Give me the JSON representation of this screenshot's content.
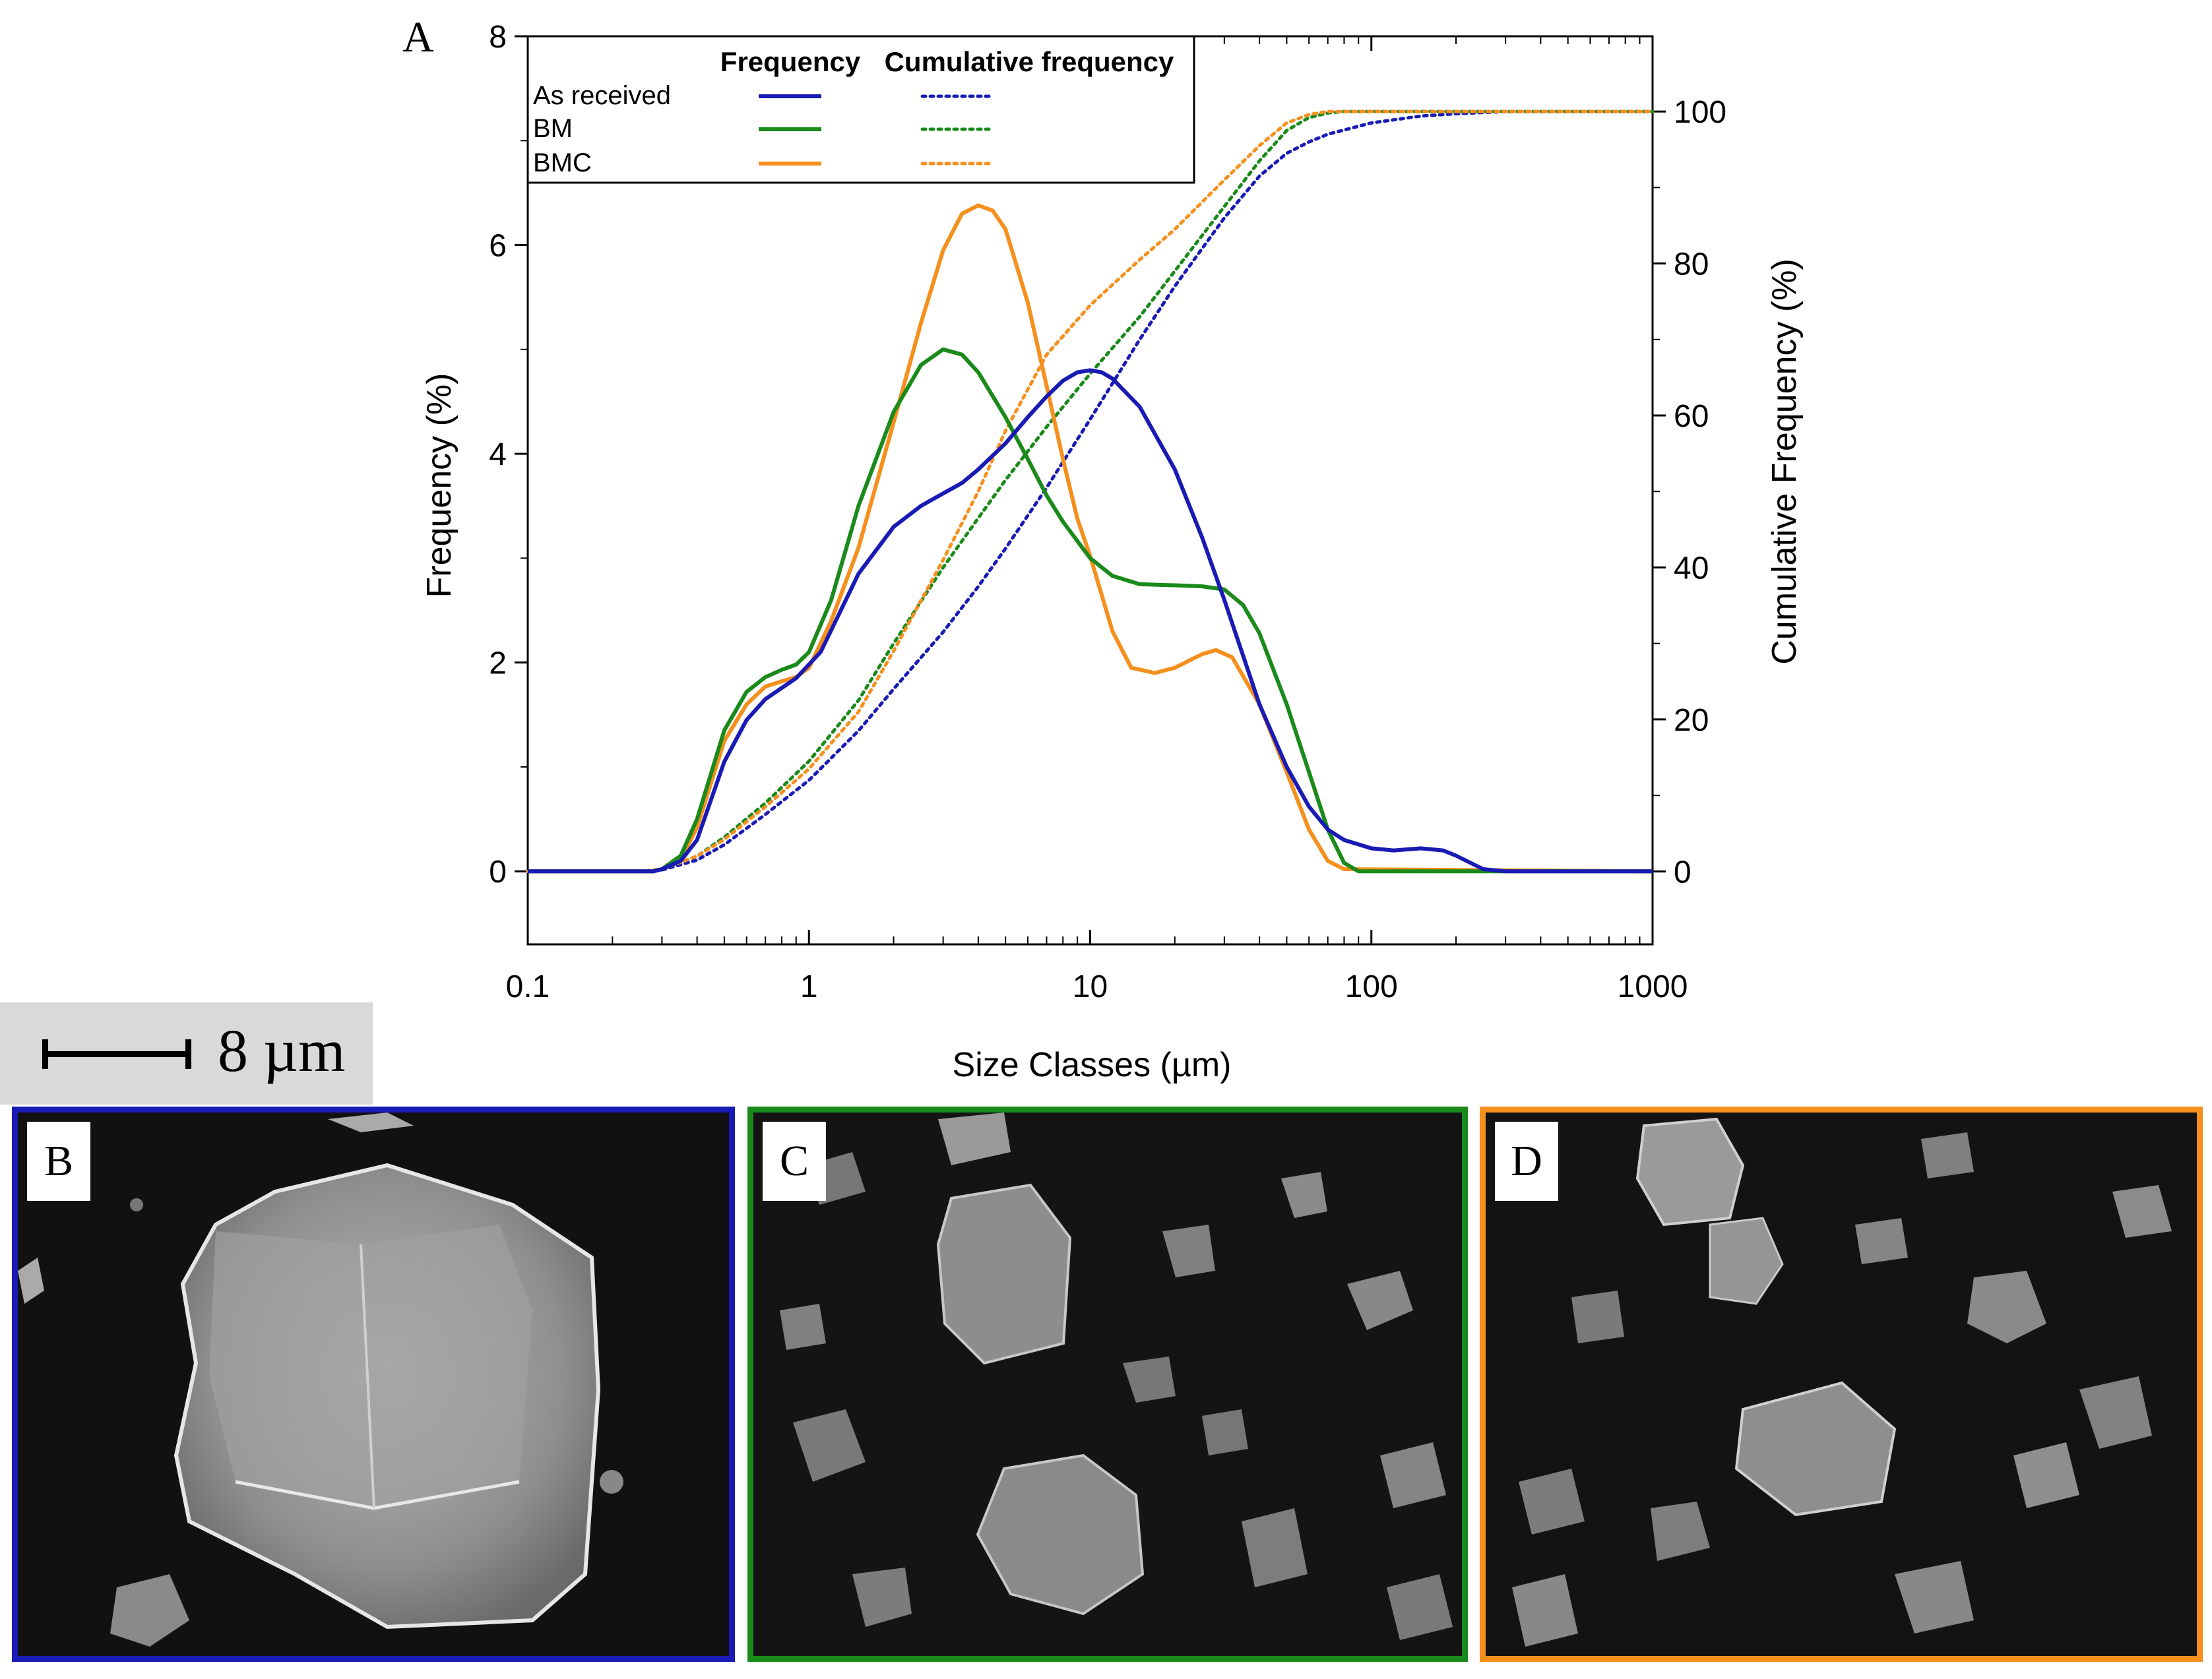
{
  "chart_data": {
    "type": "line",
    "panel_label": "A",
    "title": "",
    "xlabel": "Size Classes (µm)",
    "ylabel": "Frequency (%)",
    "y2label": "Cumulative Frequency (%)",
    "x_scale": "log",
    "xlim": [
      0.1,
      1000
    ],
    "ylim": [
      -0.7,
      8
    ],
    "y2lim": [
      -9.6,
      109.9
    ],
    "x_ticks": [
      0.1,
      1,
      10,
      100,
      1000
    ],
    "x_tick_labels": [
      "0.1",
      "1",
      "10",
      "100",
      "1000"
    ],
    "y_ticks": [
      0,
      2,
      4,
      6,
      8
    ],
    "y_tick_labels": [
      "0",
      "2",
      "4",
      "6",
      "8"
    ],
    "y2_ticks": [
      0,
      20,
      40,
      60,
      80,
      100
    ],
    "y2_tick_labels": [
      "0",
      "20",
      "40",
      "60",
      "80",
      "100"
    ],
    "grid": false,
    "legend": {
      "placement": "top-left",
      "header_frequency": "Frequency",
      "header_cumulative": "Cumulative frequency"
    },
    "series": [
      {
        "name": "As received",
        "color": "#1a1ab4",
        "frequency": {
          "x": [
            0.1,
            0.28,
            0.3,
            0.35,
            0.4,
            0.5,
            0.6,
            0.7,
            0.9,
            1.1,
            1.5,
            2,
            2.5,
            3,
            3.5,
            4,
            5,
            6,
            7,
            8,
            9,
            10,
            11,
            12,
            15,
            20,
            25,
            30,
            40,
            50,
            60,
            70,
            80,
            100,
            120,
            150,
            180,
            200,
            250,
            300,
            1000
          ],
          "y": [
            0,
            0,
            0.02,
            0.1,
            0.3,
            1.05,
            1.45,
            1.65,
            1.85,
            2.1,
            2.85,
            3.3,
            3.5,
            3.62,
            3.72,
            3.85,
            4.1,
            4.35,
            4.55,
            4.7,
            4.78,
            4.8,
            4.78,
            4.72,
            4.45,
            3.85,
            3.2,
            2.6,
            1.6,
            1.0,
            0.62,
            0.4,
            0.3,
            0.22,
            0.2,
            0.22,
            0.2,
            0.15,
            0.02,
            0,
            0
          ]
        },
        "cumulative": {
          "x": [
            0.1,
            0.25,
            0.3,
            0.4,
            0.5,
            0.7,
            1,
            1.5,
            2,
            3,
            4,
            5,
            7,
            10,
            15,
            20,
            30,
            40,
            50,
            60,
            70,
            100,
            150,
            200,
            300,
            1000
          ],
          "y": [
            0,
            0,
            0.2,
            1.5,
            3.5,
            7.5,
            12,
            18.5,
            24,
            31.5,
            37.5,
            42.5,
            50.5,
            59.5,
            70,
            77,
            86,
            91.5,
            94.5,
            96,
            97,
            98.5,
            99.4,
            99.7,
            100,
            100
          ]
        }
      },
      {
        "name": "BM",
        "color": "#1a8a1a",
        "frequency": {
          "x": [
            0.1,
            0.28,
            0.3,
            0.35,
            0.4,
            0.5,
            0.6,
            0.7,
            0.8,
            0.9,
            1,
            1.2,
            1.5,
            2,
            2.5,
            3,
            3.5,
            4,
            5,
            6,
            7,
            8,
            10,
            12,
            15,
            20,
            25,
            30,
            35,
            40,
            50,
            60,
            70,
            80,
            90,
            1000
          ],
          "y": [
            0,
            0,
            0.02,
            0.15,
            0.5,
            1.35,
            1.72,
            1.86,
            1.93,
            1.98,
            2.1,
            2.6,
            3.5,
            4.4,
            4.85,
            5.0,
            4.95,
            4.78,
            4.35,
            3.95,
            3.6,
            3.35,
            3.0,
            2.83,
            2.75,
            2.74,
            2.73,
            2.7,
            2.55,
            2.28,
            1.6,
            0.95,
            0.4,
            0.08,
            0,
            0
          ]
        },
        "cumulative": {
          "x": [
            0.1,
            0.25,
            0.3,
            0.4,
            0.5,
            0.7,
            1,
            1.5,
            2,
            3,
            4,
            5,
            7,
            10,
            15,
            20,
            30,
            40,
            50,
            60,
            70,
            80,
            100,
            1000
          ],
          "y": [
            0,
            0,
            0.3,
            2,
            4.5,
            9,
            14.5,
            22.5,
            30,
            40,
            46.5,
            51.5,
            58.5,
            65.5,
            73,
            79,
            87.5,
            93.5,
            97.5,
            99.2,
            99.8,
            100,
            100,
            100
          ]
        }
      },
      {
        "name": "BMC",
        "color": "#f5901e",
        "frequency": {
          "x": [
            0.1,
            0.28,
            0.3,
            0.35,
            0.4,
            0.5,
            0.6,
            0.7,
            0.8,
            0.9,
            1,
            1.2,
            1.5,
            2,
            2.5,
            3,
            3.5,
            4,
            4.5,
            5,
            6,
            7,
            8,
            9,
            10,
            12,
            14,
            17,
            20,
            25,
            28,
            32,
            40,
            50,
            60,
            70,
            80,
            1000
          ],
          "y": [
            0,
            0,
            0.02,
            0.12,
            0.42,
            1.25,
            1.6,
            1.77,
            1.82,
            1.86,
            1.95,
            2.4,
            3.1,
            4.3,
            5.25,
            5.95,
            6.3,
            6.38,
            6.33,
            6.15,
            5.45,
            4.65,
            3.95,
            3.38,
            3.02,
            2.3,
            1.95,
            1.9,
            1.95,
            2.08,
            2.12,
            2.05,
            1.6,
            0.95,
            0.4,
            0.1,
            0.02,
            0
          ]
        },
        "cumulative": {
          "x": [
            0.1,
            0.25,
            0.3,
            0.4,
            0.5,
            0.7,
            1,
            1.5,
            2,
            3,
            4,
            5,
            7,
            10,
            15,
            20,
            30,
            40,
            50,
            60,
            70,
            80,
            1000
          ],
          "y": [
            0,
            0,
            0.3,
            2,
            4.2,
            8.5,
            13.5,
            21,
            29,
            41,
            50,
            58,
            68,
            74.5,
            80.5,
            84.5,
            91,
            95.5,
            98.5,
            99.6,
            100,
            100,
            100
          ]
        }
      }
    ]
  },
  "micrographs": {
    "scale_bar_label": "8 µm",
    "panels": [
      {
        "letter": "B",
        "border_color": "#1a1ab4"
      },
      {
        "letter": "C",
        "border_color": "#1a8a1a"
      },
      {
        "letter": "D",
        "border_color": "#f5901e"
      }
    ]
  }
}
